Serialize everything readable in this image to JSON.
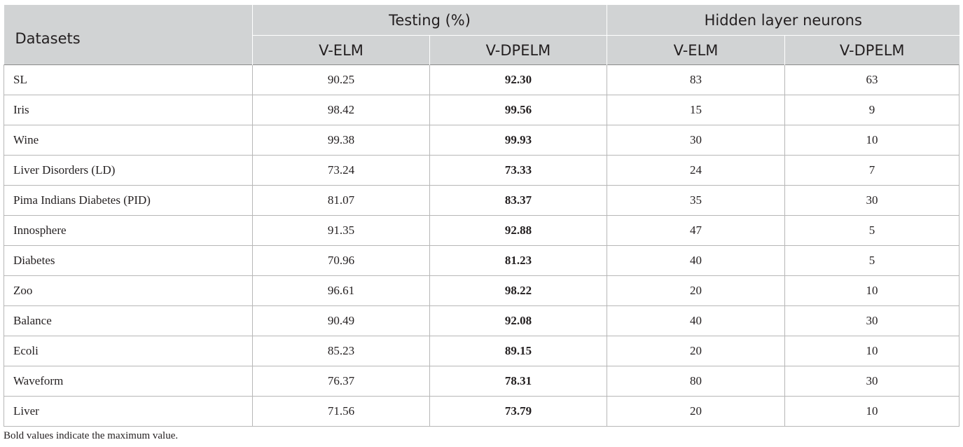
{
  "header": {
    "datasets": "Datasets",
    "testing": "Testing (%)",
    "hidden": "Hidden layer neurons",
    "sub": [
      "V-ELM",
      "V-DPELM",
      "V-ELM",
      "V-DPELM"
    ]
  },
  "rows": [
    {
      "name": "SL",
      "t1": "90.25",
      "t2": "92.30",
      "h1": "83",
      "h2": "63"
    },
    {
      "name": "Iris",
      "t1": "98.42",
      "t2": "99.56",
      "h1": "15",
      "h2": "9"
    },
    {
      "name": "Wine",
      "t1": "99.38",
      "t2": "99.93",
      "h1": "30",
      "h2": "10"
    },
    {
      "name": "Liver Disorders (LD)",
      "t1": "73.24",
      "t2": "73.33",
      "h1": "24",
      "h2": "7"
    },
    {
      "name": "Pima Indians Diabetes (PID)",
      "t1": "81.07",
      "t2": "83.37",
      "h1": "35",
      "h2": "30"
    },
    {
      "name": "Innosphere",
      "t1": "91.35",
      "t2": "92.88",
      "h1": "47",
      "h2": "5"
    },
    {
      "name": "Diabetes",
      "t1": "70.96",
      "t2": "81.23",
      "h1": "40",
      "h2": "5"
    },
    {
      "name": "Zoo",
      "t1": "96.61",
      "t2": "98.22",
      "h1": "20",
      "h2": "10"
    },
    {
      "name": "Balance",
      "t1": "90.49",
      "t2": "92.08",
      "h1": "40",
      "h2": "30"
    },
    {
      "name": "Ecoli",
      "t1": "85.23",
      "t2": "89.15",
      "h1": "20",
      "h2": "10"
    },
    {
      "name": "Waveform",
      "t1": "76.37",
      "t2": "78.31",
      "h1": "80",
      "h2": "30"
    },
    {
      "name": "Liver",
      "t1": "71.56",
      "t2": "73.79",
      "h1": "20",
      "h2": "10"
    }
  ],
  "footnote": "Bold values indicate the maximum value."
}
